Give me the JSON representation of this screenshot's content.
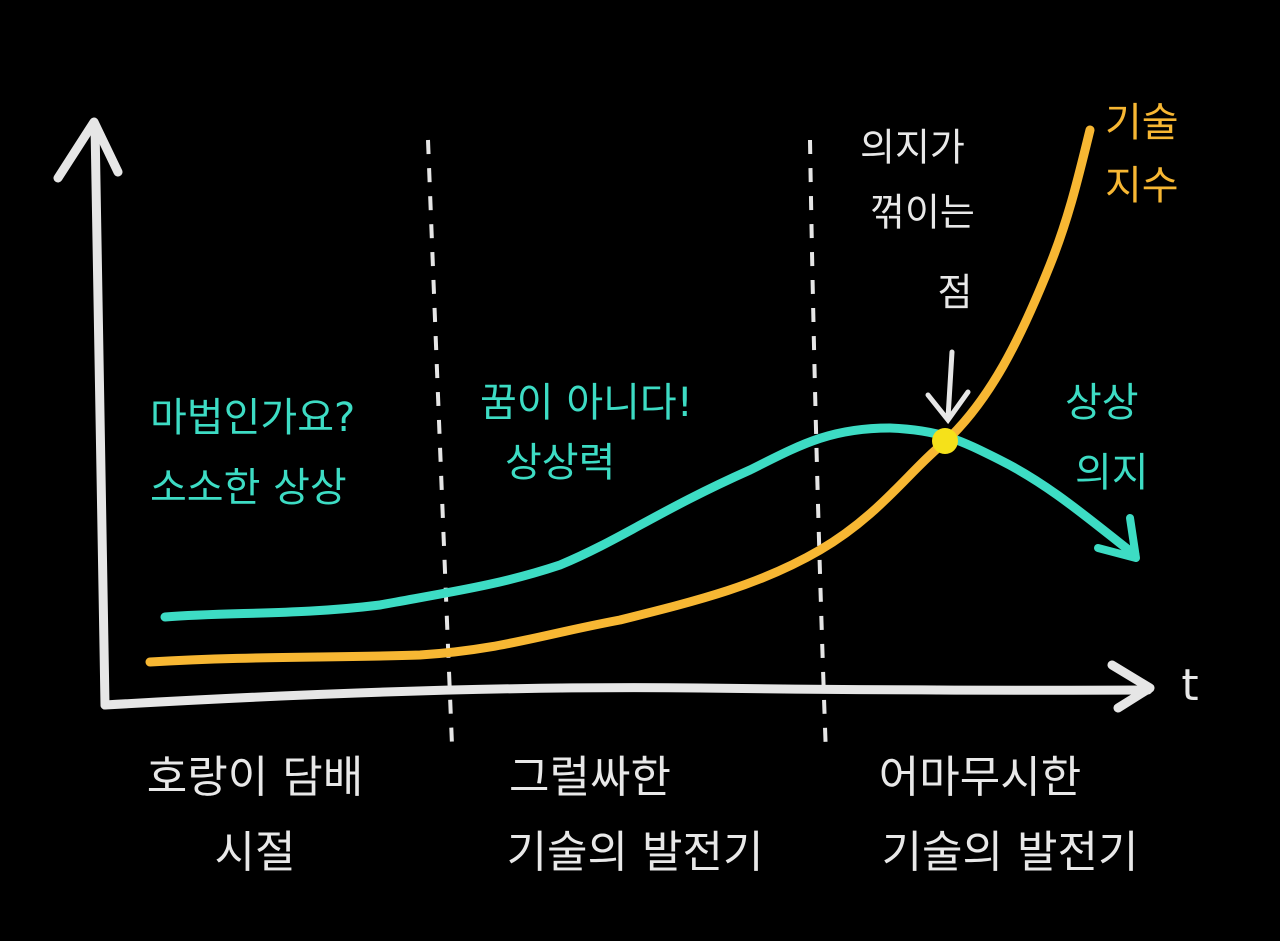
{
  "axis": {
    "x_label": "t"
  },
  "curves": [
    {
      "name": "기술 지수",
      "label_lines": [
        "기술",
        "지수"
      ]
    },
    {
      "name": "상상 의지",
      "label_lines": [
        "상상",
        "의지"
      ]
    }
  ],
  "annotations": [
    {
      "lines": [
        "마법인가요?",
        "소소한 상상"
      ]
    },
    {
      "lines": [
        "꿈이 아니다!",
        "상상력"
      ]
    },
    {
      "lines": [
        "의지가",
        "꺾이는",
        "점"
      ]
    }
  ],
  "eras": [
    {
      "lines": [
        "호랑이 담배",
        "시절"
      ]
    },
    {
      "lines": [
        "그럴싸한",
        "기술의 발전기"
      ]
    },
    {
      "lines": [
        "어마무시한",
        "기술의 발전기"
      ]
    }
  ]
}
